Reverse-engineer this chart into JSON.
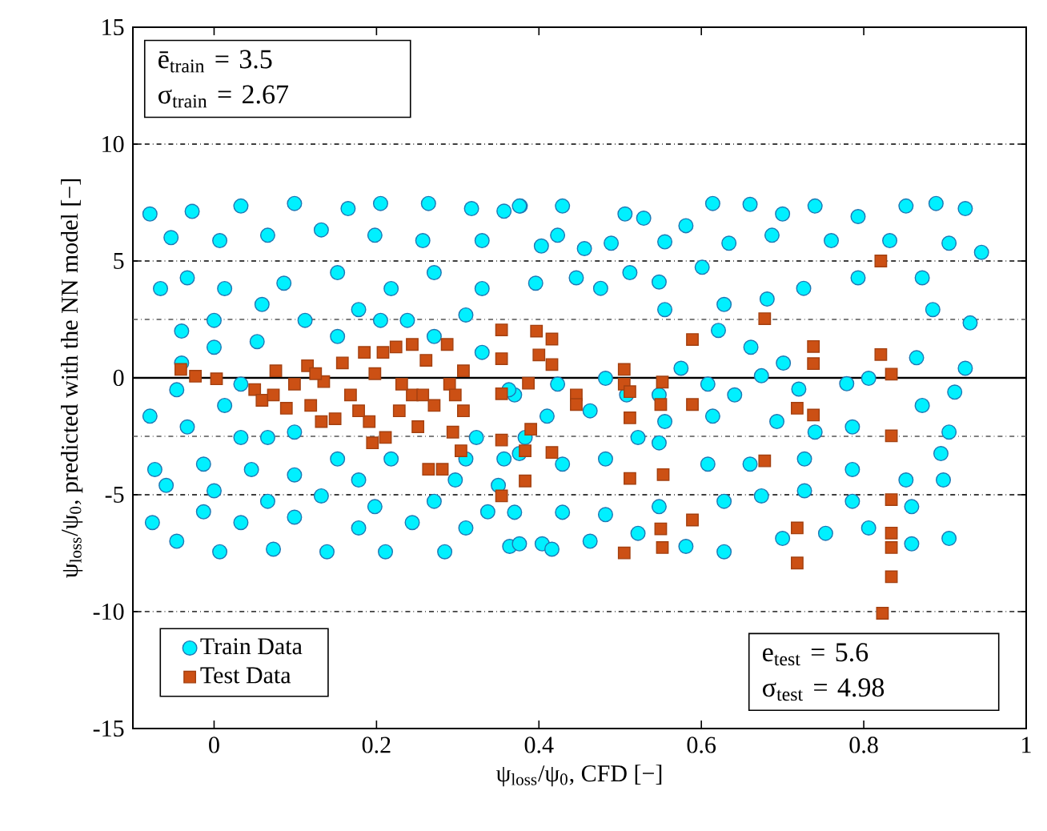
{
  "chart_data": {
    "type": "scatter",
    "xlabel": "ψ$_{loss}$/ψ$_{0}$, CFD [−]",
    "ylabel": "ψ$_{loss}$/ψ$_{0}$, predicted with the NN model [−]",
    "xlim": [
      -0.1,
      1
    ],
    "ylim": [
      -15,
      15
    ],
    "xticks": [
      0,
      0.2,
      0.4,
      0.6,
      0.8,
      1
    ],
    "yticks": [
      -15,
      -10,
      -5,
      0,
      5,
      10,
      15
    ],
    "legend": "bottom left",
    "annotations": [
      "ē$_{train}$ = 3.5",
      "σ$_{train}$ = 2.67",
      "e$_{test}$ = 5.6",
      "σ$_{test}$ = 4.98"
    ],
    "ref_lines": [
      {
        "axis": "y",
        "value": 10,
        "color": "#000000",
        "line_style": "dashdot"
      },
      {
        "axis": "y",
        "value": 5,
        "color": "#000000",
        "line_style": "dashdot"
      },
      {
        "axis": "y",
        "value": 2.5,
        "color": "#555555",
        "line_style": "dashdot"
      },
      {
        "axis": "y",
        "value": 0,
        "color": "#000000",
        "line_style": "solid"
      },
      {
        "axis": "y",
        "value": -2.5,
        "color": "#555555",
        "line_style": "dashdot"
      },
      {
        "axis": "y",
        "value": -5,
        "color": "#000000",
        "line_style": "dashdot"
      },
      {
        "axis": "y",
        "value": -10,
        "color": "#000000",
        "line_style": "dashdot"
      }
    ],
    "series": [
      {
        "name": "Train Data",
        "color": "#00f0ff",
        "marker": "circle",
        "x": [
          0.506,
          0.529,
          0.555,
          0.581,
          0.614,
          0.66,
          0.7,
          0.74,
          0.793,
          0.852,
          0.889,
          0.925,
          0.945,
          0.905,
          0.832,
          0.76,
          0.687,
          0.634,
          0.601,
          0.548,
          0.512,
          0.489,
          0.456,
          0.429,
          0.377,
          0.357,
          0.423,
          0.446,
          0.476,
          0.555,
          0.628,
          0.681,
          0.726,
          0.793,
          0.872,
          0.885,
          0.931,
          0.865,
          0.925,
          0.912,
          0.872,
          0.806,
          0.779,
          0.72,
          0.674,
          0.621,
          0.661,
          0.701,
          0.641,
          0.608,
          0.575,
          0.548,
          0.482,
          0.508,
          0.423,
          0.37,
          0.41,
          0.463,
          0.522,
          0.555,
          0.614,
          0.693,
          0.74,
          0.786,
          0.905,
          0.895,
          0.852,
          0.786,
          0.727,
          0.66,
          0.608,
          0.548,
          0.482,
          0.429,
          0.383,
          0.357,
          0.37,
          0.429,
          0.482,
          0.548,
          0.628,
          0.674,
          0.727,
          0.786,
          0.806,
          0.753,
          0.7,
          0.628,
          0.581,
          0.522,
          0.463,
          0.404,
          0.364,
          0.905,
          0.859,
          0.898,
          0.859,
          -0.079,
          -0.027,
          0.033,
          0.099,
          0.165,
          0.205,
          0.264,
          0.317,
          0.376,
          -0.053,
          0.007,
          0.066,
          0.132,
          0.198,
          0.257,
          0.33,
          0.403,
          -0.066,
          -0.033,
          0.013,
          0.086,
          0.152,
          0.218,
          0.271,
          0.33,
          0.396,
          -0.04,
          0.0,
          0.059,
          0.112,
          0.178,
          0.238,
          0.31,
          0.0,
          0.053,
          -0.04,
          -0.046,
          0.013,
          -0.079,
          -0.033,
          0.033,
          0.099,
          0.152,
          0.218,
          0.323,
          0.376,
          -0.073,
          -0.013,
          0.046,
          0.099,
          0.178,
          0.297,
          0.35,
          -0.059,
          0.0,
          0.066,
          0.132,
          0.198,
          0.271,
          0.337,
          -0.076,
          -0.013,
          0.033,
          0.099,
          0.178,
          0.244,
          0.31,
          -0.046,
          0.007,
          0.073,
          0.139,
          0.211,
          0.284,
          0.376,
          0.416,
          0.033,
          0.152,
          0.205,
          0.271,
          0.33,
          0.363,
          0.31,
          0.066
        ],
        "values": [
          7.01,
          6.83,
          5.82,
          6.51,
          7.46,
          7.42,
          7.01,
          7.35,
          6.9,
          7.35,
          7.46,
          7.24,
          5.37,
          5.76,
          5.87,
          5.87,
          6.1,
          5.76,
          4.73,
          4.1,
          4.5,
          5.76,
          5.53,
          7.35,
          7.35,
          7.13,
          6.1,
          4.28,
          3.83,
          2.92,
          3.14,
          3.37,
          3.83,
          4.28,
          4.28,
          2.92,
          2.35,
          0.86,
          0.41,
          -0.61,
          -1.18,
          -0.02,
          -0.25,
          -0.48,
          0.09,
          2.03,
          1.31,
          0.63,
          -0.73,
          -0.27,
          0.41,
          -0.73,
          -0.02,
          -0.73,
          -0.27,
          -0.73,
          -1.64,
          -1.41,
          -2.55,
          -1.87,
          -1.64,
          -1.87,
          -2.32,
          -2.1,
          -2.32,
          -3.24,
          -4.37,
          -3.92,
          -3.47,
          -3.69,
          -3.69,
          -2.78,
          -3.47,
          -3.69,
          -2.55,
          -3.47,
          -5.75,
          -5.75,
          -5.85,
          -5.51,
          -5.28,
          -5.05,
          -4.83,
          -5.28,
          -6.42,
          -6.65,
          -6.87,
          -7.44,
          -7.21,
          -6.65,
          -6.99,
          -7.1,
          -7.21,
          -6.87,
          -7.1,
          -4.37,
          -5.51,
          7.01,
          7.12,
          7.35,
          7.46,
          7.24,
          7.46,
          7.46,
          7.24,
          7.35,
          6.0,
          5.87,
          6.1,
          6.33,
          6.1,
          5.87,
          5.87,
          5.64,
          3.82,
          4.28,
          3.82,
          4.05,
          4.5,
          3.82,
          4.5,
          3.82,
          4.05,
          2.0,
          2.46,
          3.14,
          2.46,
          2.92,
          2.46,
          2.69,
          1.31,
          1.55,
          0.63,
          -0.51,
          -1.18,
          -1.64,
          -2.1,
          -2.55,
          -2.32,
          -3.47,
          -3.47,
          -2.55,
          -3.24,
          -3.92,
          -3.69,
          -3.92,
          -4.15,
          -4.37,
          -4.37,
          -4.6,
          -4.6,
          -4.83,
          -5.28,
          -5.05,
          -5.51,
          -5.28,
          -5.73,
          -6.19,
          -5.73,
          -6.19,
          -5.96,
          -6.42,
          -6.19,
          -6.42,
          -6.99,
          -7.44,
          -7.33,
          -7.44,
          -7.44,
          -7.44,
          -7.1,
          -7.33,
          -0.27,
          1.77,
          2.46,
          1.77,
          1.09,
          -0.51,
          -3.47,
          -2.55
        ]
      },
      {
        "name": "Test Data",
        "color": "#cc5014",
        "marker": "square",
        "x": [
          0.821,
          0.678,
          0.589,
          0.738,
          0.738,
          0.821,
          0.834,
          0.505,
          0.505,
          0.512,
          0.552,
          0.55,
          0.589,
          0.512,
          0.718,
          0.738,
          0.834,
          0.678,
          0.512,
          0.553,
          0.834,
          0.589,
          0.55,
          0.718,
          0.552,
          0.505,
          0.718,
          0.834,
          0.834,
          0.834,
          0.823,
          0.354,
          0.397,
          0.416,
          0.4,
          0.354,
          0.416,
          0.387,
          0.354,
          0.446,
          0.446,
          0.39,
          0.354,
          0.383,
          0.416,
          0.383,
          0.354,
          -0.041,
          -0.023,
          0.003,
          0.05,
          0.059,
          0.076,
          0.089,
          0.099,
          0.115,
          0.119,
          0.135,
          0.149,
          0.158,
          0.168,
          0.185,
          0.191,
          0.198,
          0.208,
          0.211,
          0.224,
          0.228,
          0.244,
          0.244,
          0.251,
          0.261,
          0.264,
          0.271,
          0.281,
          0.287,
          0.29,
          0.294,
          0.304,
          0.307,
          0.307,
          0.073,
          0.125,
          0.178,
          0.231,
          0.257,
          0.297,
          0.132,
          0.195
        ],
        "values": [
          5.0,
          2.53,
          1.64,
          1.34,
          0.61,
          1.0,
          0.16,
          0.36,
          -0.27,
          -0.59,
          -0.18,
          -1.14,
          -1.14,
          -1.71,
          -1.3,
          -1.59,
          -2.48,
          -3.55,
          -4.3,
          -4.14,
          -5.21,
          -6.08,
          -6.46,
          -6.42,
          -7.26,
          -7.49,
          -7.92,
          -6.64,
          -7.26,
          -8.51,
          -10.07,
          2.05,
          2.0,
          1.66,
          0.98,
          0.82,
          0.57,
          -0.23,
          -0.68,
          -0.73,
          -1.14,
          -2.2,
          -2.66,
          -3.12,
          -3.19,
          -4.41,
          -5.05,
          0.36,
          0.07,
          -0.04,
          -0.5,
          -0.96,
          0.3,
          -1.3,
          -0.27,
          0.52,
          -1.18,
          -0.16,
          -1.75,
          0.64,
          -0.73,
          1.09,
          -1.87,
          0.18,
          1.09,
          -2.55,
          1.32,
          -1.41,
          1.43,
          -0.73,
          -2.09,
          0.75,
          -3.91,
          -1.18,
          -3.91,
          1.43,
          -0.27,
          -2.32,
          -3.12,
          0.3,
          -1.41,
          -0.73,
          0.18,
          -1.41,
          -0.27,
          -0.73,
          -0.73,
          -1.87,
          -2.78
        ]
      }
    ]
  }
}
